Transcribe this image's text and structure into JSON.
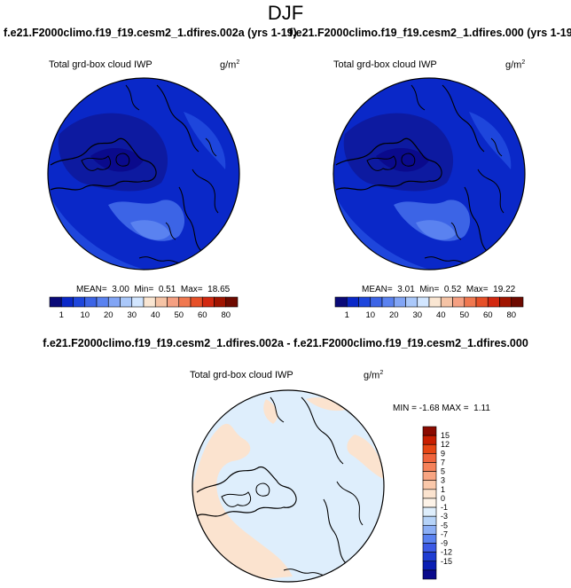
{
  "figure": {
    "season": "DJF"
  },
  "panels": [
    {
      "title": "f.e21.F2000climo.f19_f19.cesm2_1.dfires.002a (yrs 1-19)",
      "variable": "Total grd-box cloud IWP",
      "units_base": "g/m",
      "units_exp": "2",
      "mean_label": "MEAN=",
      "mean": "3.00",
      "min_label": "Min=",
      "min": "0.51",
      "max_label": "Max=",
      "max": "18.65"
    },
    {
      "title": "f.e21.F2000climo.f19_f19.cesm2_1.dfires.000 (yrs 1-19)",
      "variable": "Total grd-box cloud IWP",
      "units_base": "g/m",
      "units_exp": "2",
      "mean_label": "MEAN=",
      "mean": "3.01",
      "min_label": "Min=",
      "min": "0.52",
      "max_label": "Max=",
      "max": "19.22"
    }
  ],
  "diff_panel": {
    "title": "f.e21.F2000climo.f19_f19.cesm2_1.dfires.002a - f.e21.F2000climo.f19_f19.cesm2_1.dfires.000",
    "variable": "Total grd-box cloud IWP",
    "units_base": "g/m",
    "units_exp": "2",
    "min_label": "MIN =",
    "min": "-1.68",
    "max_label": "MAX =",
    "max": "1.11"
  },
  "chart_data": [
    {
      "type": "heatmap",
      "projection": "north-polar-stereographic",
      "field": "Total grd-box cloud IWP",
      "colorbar": {
        "orientation": "horizontal",
        "levels": [
          "1",
          "10",
          "20",
          "30",
          "40",
          "50",
          "60",
          "80"
        ],
        "colors": [
          "#0a0a78",
          "#0a28c8",
          "#1e46dc",
          "#3c64e6",
          "#5a82f0",
          "#82a5f5",
          "#aac8fa",
          "#d2e6ff",
          "#fae6d2",
          "#f5c3a5",
          "#f5a082",
          "#f07850",
          "#e65028",
          "#d22810",
          "#a01400",
          "#6e0a00"
        ]
      },
      "dominant_colors": [
        "#0a28c8",
        "#0d1aa0",
        "#3c64e6"
      ]
    },
    {
      "type": "heatmap",
      "projection": "north-polar-stereographic",
      "field": "Total grd-box cloud IWP",
      "colorbar": {
        "orientation": "horizontal",
        "levels": [
          "1",
          "10",
          "20",
          "30",
          "40",
          "50",
          "60",
          "80"
        ],
        "colors": [
          "#0a0a78",
          "#0a28c8",
          "#1e46dc",
          "#3c64e6",
          "#5a82f0",
          "#82a5f5",
          "#aac8fa",
          "#d2e6ff",
          "#fae6d2",
          "#f5c3a5",
          "#f5a082",
          "#f07850",
          "#e65028",
          "#d22810",
          "#a01400",
          "#6e0a00"
        ]
      },
      "dominant_colors": [
        "#0a28c8",
        "#0d1aa0",
        "#3c64e6"
      ]
    },
    {
      "type": "heatmap",
      "projection": "north-polar-stereographic",
      "field": "difference",
      "colorbar": {
        "orientation": "vertical",
        "levels": [
          "15",
          "12",
          "9",
          "7",
          "5",
          "3",
          "1",
          "0",
          "-1",
          "-3",
          "-5",
          "-7",
          "-9",
          "-12",
          "-15"
        ],
        "colors": [
          "#8b0a00",
          "#c81e00",
          "#e64614",
          "#f0643c",
          "#f5825a",
          "#f8a582",
          "#fac8aa",
          "#fbe3cf",
          "#fdf3e8",
          "#deeefc",
          "#b6d3f8",
          "#8caff5",
          "#5a82f0",
          "#3c5ae6",
          "#1e3cd2",
          "#0a1eb4",
          "#0a0a8c"
        ]
      },
      "dominant_colors": [
        "#fbe3cf",
        "#deeefc"
      ]
    }
  ]
}
